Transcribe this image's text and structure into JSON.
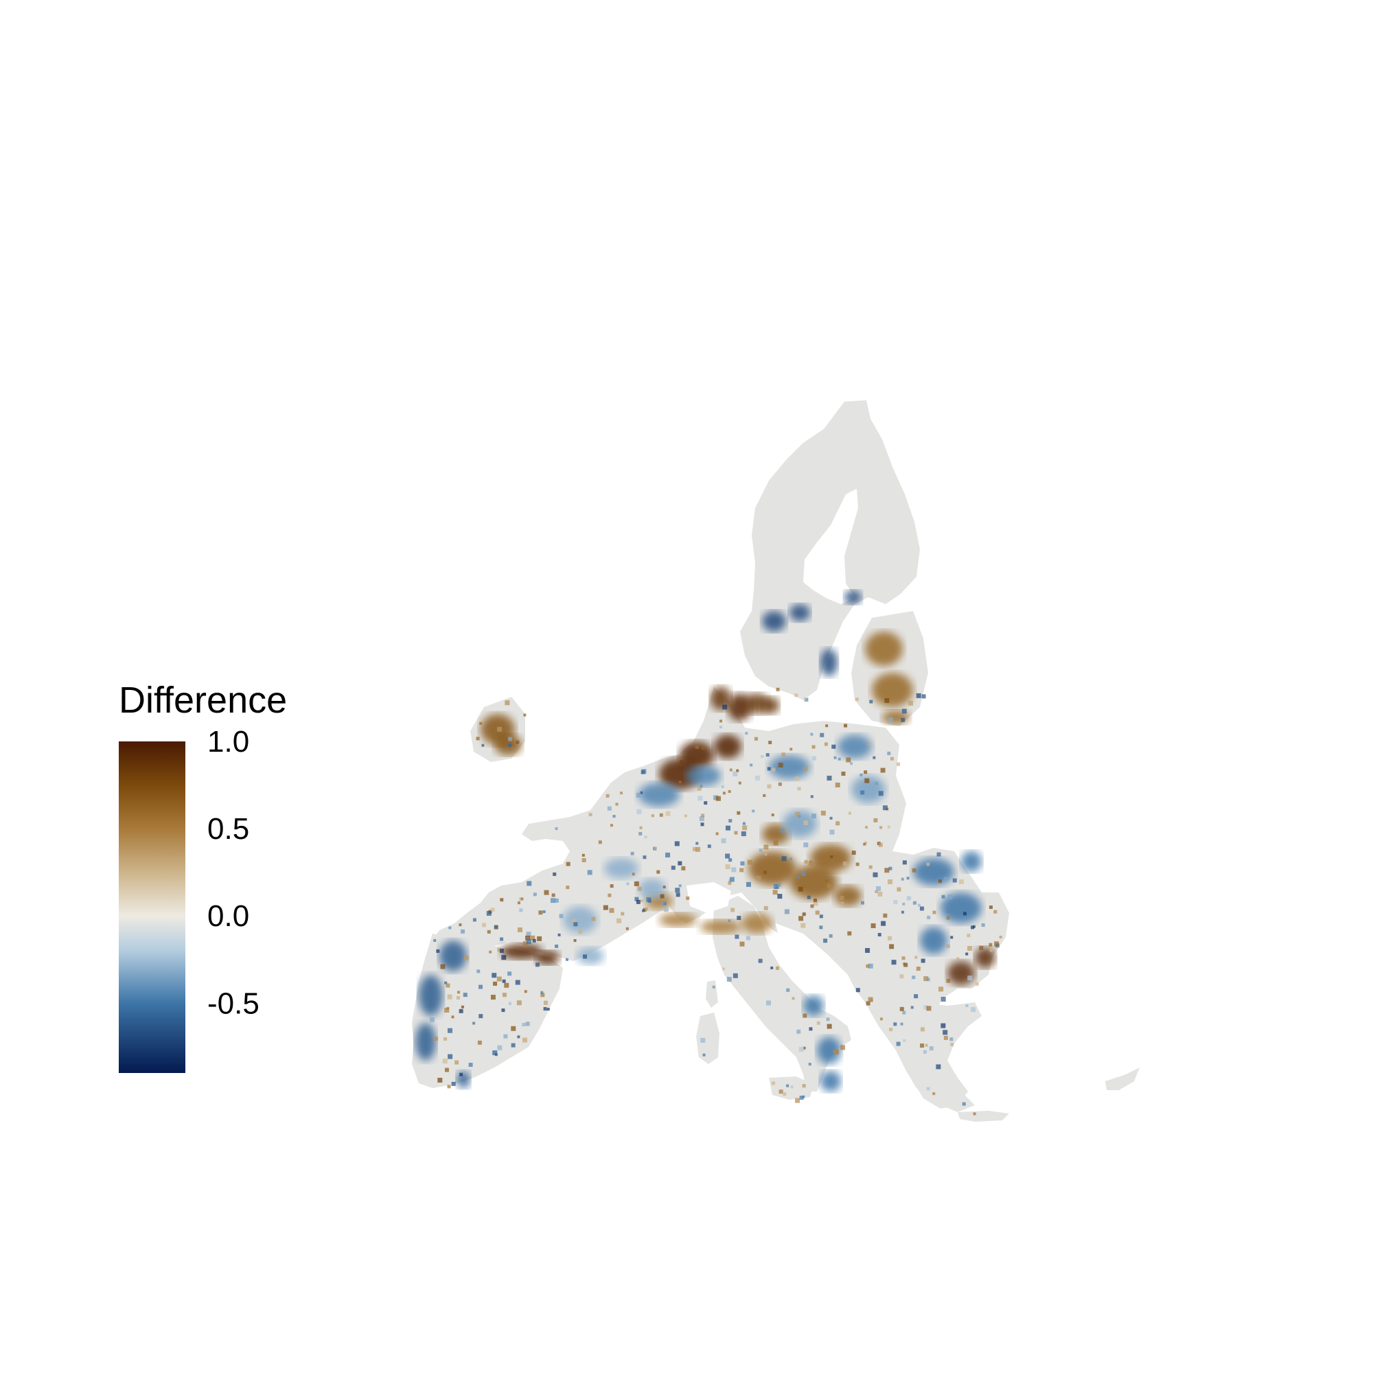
{
  "map": {
    "type": "raster-difference-map",
    "region": "Europe",
    "land_color": "#e3e3e1",
    "background_color": "#ffffff"
  },
  "legend": {
    "title": "Difference",
    "placement": "left",
    "ticks": [
      "1.0",
      "0.5",
      "0.0",
      "-0.5"
    ],
    "tick_values": [
      1.0,
      0.5,
      0.0,
      -0.5
    ],
    "range": [
      -0.9,
      1.0
    ],
    "colors": [
      {
        "value": 1.0,
        "color": "#4a1a03"
      },
      {
        "value": 0.75,
        "color": "#7c4a0c"
      },
      {
        "value": 0.5,
        "color": "#a87a3a"
      },
      {
        "value": 0.25,
        "color": "#cdb48a"
      },
      {
        "value": 0.0,
        "color": "#eeeae2"
      },
      {
        "value": -0.2,
        "color": "#b3ccdf"
      },
      {
        "value": -0.5,
        "color": "#3d75a7"
      },
      {
        "value": -0.9,
        "color": "#031a50"
      }
    ]
  },
  "regions": [
    {
      "name": "brown-benelux",
      "value": 0.95
    },
    {
      "name": "brown-denmark",
      "value": 0.85
    },
    {
      "name": "brown-ireland",
      "value": 0.7
    },
    {
      "name": "brown-baltics",
      "value": 0.6
    },
    {
      "name": "brown-po-valley",
      "value": 0.5
    },
    {
      "name": "brown-hungary",
      "value": 0.65
    },
    {
      "name": "brown-pyrenees",
      "value": 0.95
    },
    {
      "name": "brown-romania-east",
      "value": 0.9
    },
    {
      "name": "blue-portugal",
      "value": -0.6
    },
    {
      "name": "blue-germany-north",
      "value": -0.45
    },
    {
      "name": "blue-poland",
      "value": -0.35
    },
    {
      "name": "blue-romania",
      "value": -0.5
    },
    {
      "name": "blue-sweden-south",
      "value": -0.7
    },
    {
      "name": "blue-italy-south",
      "value": -0.5
    },
    {
      "name": "blue-france-west",
      "value": -0.3
    }
  ]
}
